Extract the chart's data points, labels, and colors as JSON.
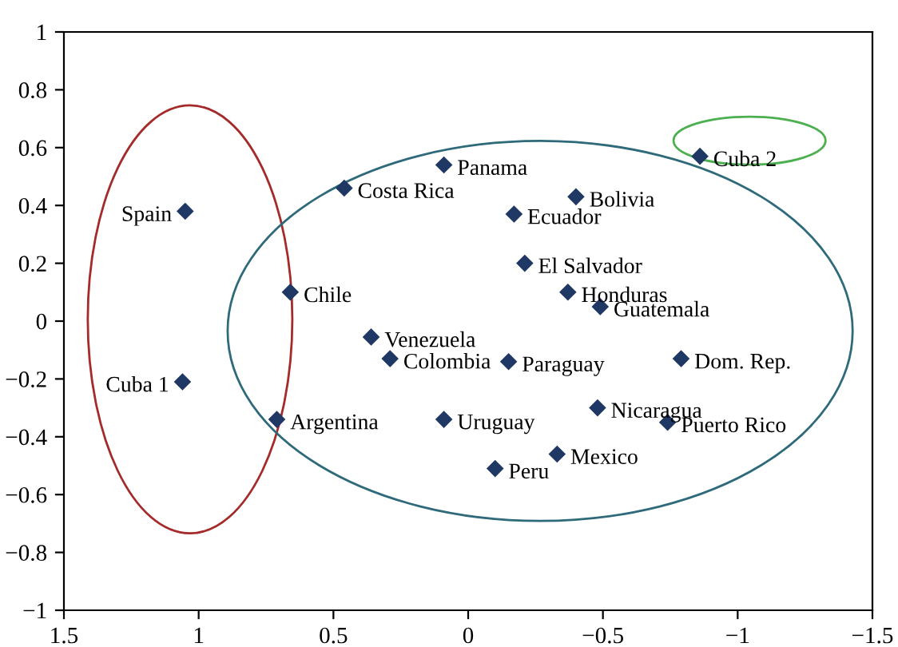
{
  "chart_data": {
    "type": "scatter",
    "marker": "diamond",
    "grid": false,
    "x": [
      1.05,
      1.06,
      0.66,
      0.46,
      0.09,
      0.36,
      0.29,
      0.71,
      0.09,
      -0.1,
      -0.33,
      -0.15,
      -0.48,
      -0.74,
      -0.79,
      -0.49,
      -0.37,
      -0.21,
      -0.17,
      -0.4,
      -0.86
    ],
    "values": [
      0.38,
      -0.21,
      0.1,
      0.46,
      0.54,
      -0.055,
      -0.13,
      -0.34,
      -0.34,
      -0.51,
      -0.46,
      -0.14,
      -0.3,
      -0.35,
      -0.13,
      0.05,
      0.1,
      0.2,
      0.37,
      0.43,
      0.57
    ],
    "color": "#1f3864",
    "xlim": [
      1.5,
      -1.5
    ],
    "xticks": [
      1.5,
      1,
      0.5,
      0,
      -0.5,
      -1,
      -1.5
    ],
    "ylim": [
      -1,
      1
    ],
    "yticks": [
      -1,
      -0.8,
      -0.6,
      -0.4,
      -0.2,
      0,
      0.2,
      0.4,
      0.6,
      0.8,
      1
    ],
    "annotations": [
      {
        "text": "Spain",
        "x": 1.05,
        "y": 0.38
      },
      {
        "text": "Cuba 1",
        "x": 1.06,
        "y": -0.21
      },
      {
        "text": "Chile",
        "x": 0.66,
        "y": 0.1
      },
      {
        "text": "Costa Rica",
        "x": 0.46,
        "y": 0.46
      },
      {
        "text": "Panama",
        "x": 0.09,
        "y": 0.54
      },
      {
        "text": "Venezuela",
        "x": 0.36,
        "y": -0.055
      },
      {
        "text": "Colombia",
        "x": 0.29,
        "y": -0.13
      },
      {
        "text": "Argentina",
        "x": 0.71,
        "y": -0.34
      },
      {
        "text": "Uruguay",
        "x": 0.09,
        "y": -0.34
      },
      {
        "text": "Peru",
        "x": -0.1,
        "y": -0.51
      },
      {
        "text": "Mexico",
        "x": -0.33,
        "y": -0.46
      },
      {
        "text": "Paraguay",
        "x": -0.15,
        "y": -0.14
      },
      {
        "text": "Nicaragua",
        "x": -0.48,
        "y": -0.3
      },
      {
        "text": "Puerto Rico",
        "x": -0.74,
        "y": -0.35
      },
      {
        "text": "Dom. Rep.",
        "x": -0.79,
        "y": -0.13
      },
      {
        "text": "Guatemala",
        "x": -0.49,
        "y": 0.05
      },
      {
        "text": "Honduras",
        "x": -0.37,
        "y": 0.1
      },
      {
        "text": "El Salvador",
        "x": -0.21,
        "y": 0.2
      },
      {
        "text": "Ecuador",
        "x": -0.17,
        "y": 0.37
      },
      {
        "text": "Bolivia",
        "x": -0.4,
        "y": 0.43
      },
      {
        "text": "Cuba 2",
        "x": -0.86,
        "y": 0.57
      }
    ]
  }
}
